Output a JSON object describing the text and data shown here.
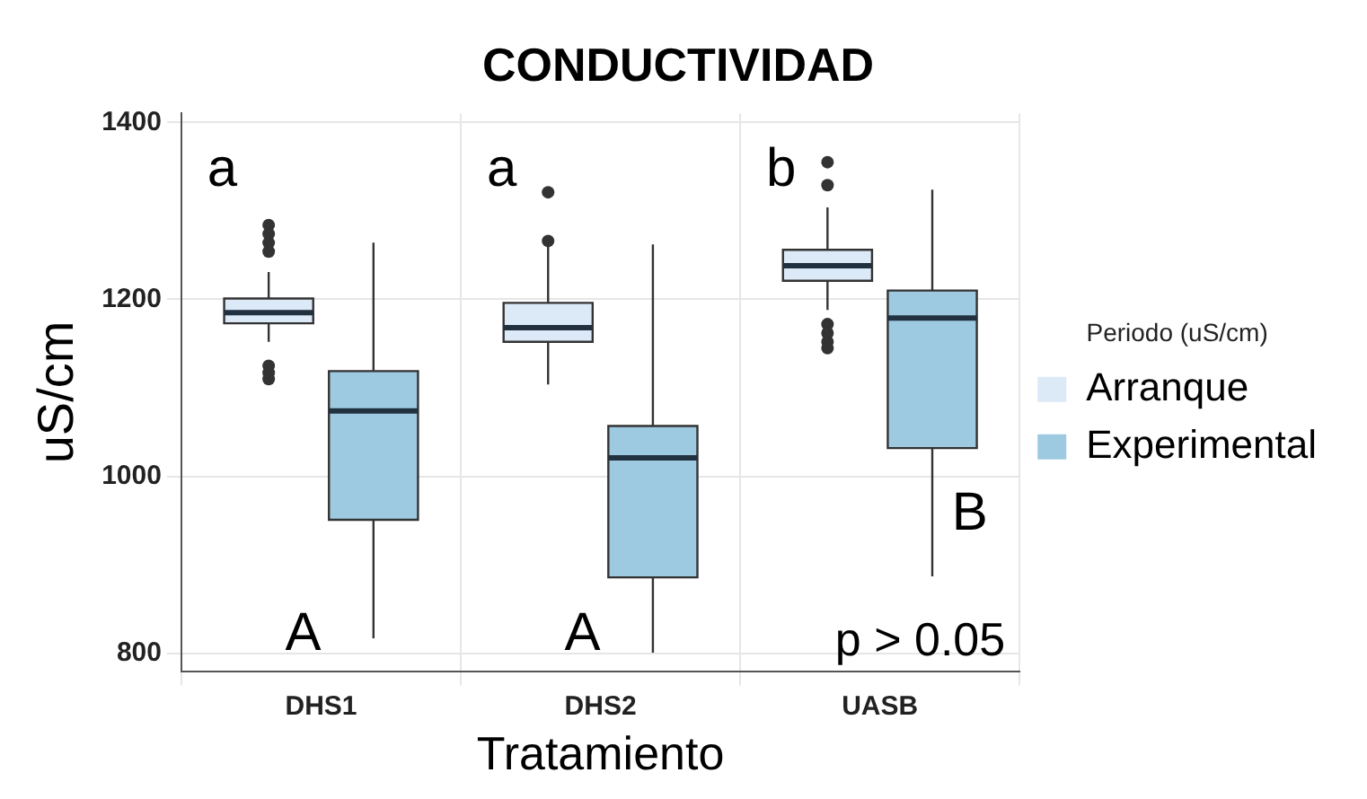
{
  "chart_data": {
    "type": "box",
    "title": "CONDUCTIVIDAD",
    "xlabel": "Tratamiento",
    "ylabel": "uS/cm",
    "legend_title": "Periodo (uS/cm)",
    "categories": [
      "DHS1",
      "DHS2",
      "UASB"
    ],
    "series": [
      {
        "name": "Arranque",
        "color": "#dce9f6",
        "boxes": [
          {
            "low": 1152,
            "q1": 1173,
            "median": 1185,
            "q3": 1201,
            "high": 1231,
            "outliers": [
              1284,
              1274,
              1264,
              1254,
              1125,
              1117,
              1110
            ]
          },
          {
            "low": 1104,
            "q1": 1152,
            "median": 1168,
            "q3": 1196,
            "high": 1262,
            "outliers": [
              1266,
              1321
            ]
          },
          {
            "low": 1188,
            "q1": 1221,
            "median": 1238,
            "q3": 1256,
            "high": 1304,
            "outliers": [
              1355,
              1329,
              1172,
              1162,
              1152,
              1145
            ]
          }
        ]
      },
      {
        "name": "Experimental",
        "color": "#9ecae1",
        "boxes": [
          {
            "low": 817,
            "q1": 951,
            "median": 1074,
            "q3": 1119,
            "high": 1264
          },
          {
            "low": 801,
            "q1": 886,
            "median": 1021,
            "q3": 1057,
            "high": 1262
          },
          {
            "low": 887,
            "q1": 1032,
            "median": 1179,
            "q3": 1210,
            "high": 1324
          }
        ]
      }
    ],
    "ylim": [
      780,
      1410
    ],
    "yticks": [
      800,
      1000,
      1200,
      1400
    ],
    "grid": true,
    "legend": "right",
    "annotations": [
      "a",
      "a",
      "b",
      "A",
      "A",
      "B",
      "p > 0.05"
    ]
  }
}
